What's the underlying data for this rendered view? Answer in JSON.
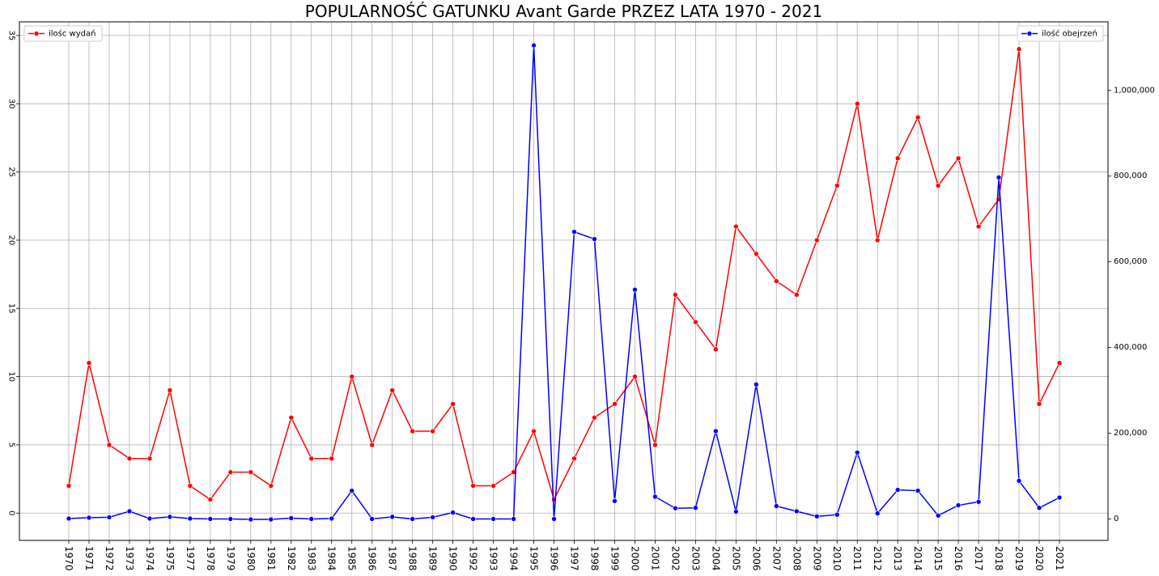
{
  "chart_data": {
    "type": "line",
    "title": "POPULARNOŚĆ GATUNKU Avant Garde PRZEZ LATA 1970 - 2021",
    "xlabel": "",
    "ylabel": "",
    "ylabel_right": "",
    "grid": true,
    "categories": [
      "1970",
      "1971",
      "1972",
      "1973",
      "1974",
      "1975",
      "1977",
      "1978",
      "1979",
      "1980",
      "1981",
      "1982",
      "1983",
      "1984",
      "1985",
      "1986",
      "1987",
      "1988",
      "1989",
      "1990",
      "1992",
      "1993",
      "1994",
      "1995",
      "1996",
      "1997",
      "1998",
      "1999",
      "2000",
      "2001",
      "2002",
      "2003",
      "2004",
      "2005",
      "2006",
      "2007",
      "2008",
      "2009",
      "2010",
      "2011",
      "2012",
      "2013",
      "2014",
      "2015",
      "2016",
      "2017",
      "2018",
      "2019",
      "2020",
      "2021"
    ],
    "left_axis": {
      "ylim": [
        -2,
        36
      ],
      "ticks": [
        0,
        5,
        10,
        15,
        20,
        25,
        30,
        35
      ]
    },
    "right_axis": {
      "ylim": [
        -50000,
        1160000
      ],
      "ticks": [
        0,
        200000,
        400000,
        600000,
        800000,
        1000000
      ],
      "tick_labels": [
        "0",
        "200,000",
        "400,000",
        "600,000",
        "800,000",
        "1,000,000"
      ]
    },
    "series": [
      {
        "name": "ilośc wydań",
        "axis": "left",
        "color": "#ff0000",
        "legend_position": "upper-left",
        "values": [
          2,
          11,
          5,
          4,
          4,
          9,
          2,
          1,
          3,
          3,
          2,
          7,
          4,
          4,
          10,
          5,
          9,
          6,
          6,
          8,
          2,
          2,
          3,
          6,
          1,
          4,
          7,
          8,
          10,
          5,
          16,
          14,
          12,
          21,
          19,
          17,
          16,
          20,
          24,
          30,
          20,
          26,
          29,
          24,
          26,
          21,
          23,
          34,
          8,
          11
        ]
      },
      {
        "name": "ilość obejrzeń",
        "axis": "right",
        "color": "#0000ff",
        "legend_position": "upper-right",
        "values": [
          1000,
          3000,
          4000,
          18000,
          1000,
          5000,
          1000,
          0,
          0,
          -1000,
          -1000,
          2000,
          0,
          1000,
          66000,
          0,
          5000,
          0,
          4000,
          15000,
          0,
          0,
          0,
          1105000,
          0,
          670000,
          653000,
          42000,
          535000,
          52000,
          25000,
          26000,
          205000,
          17000,
          314000,
          30000,
          18000,
          6000,
          10000,
          155000,
          13000,
          68000,
          66000,
          8000,
          32000,
          40000,
          797000,
          89000,
          26000,
          50000
        ]
      }
    ]
  }
}
